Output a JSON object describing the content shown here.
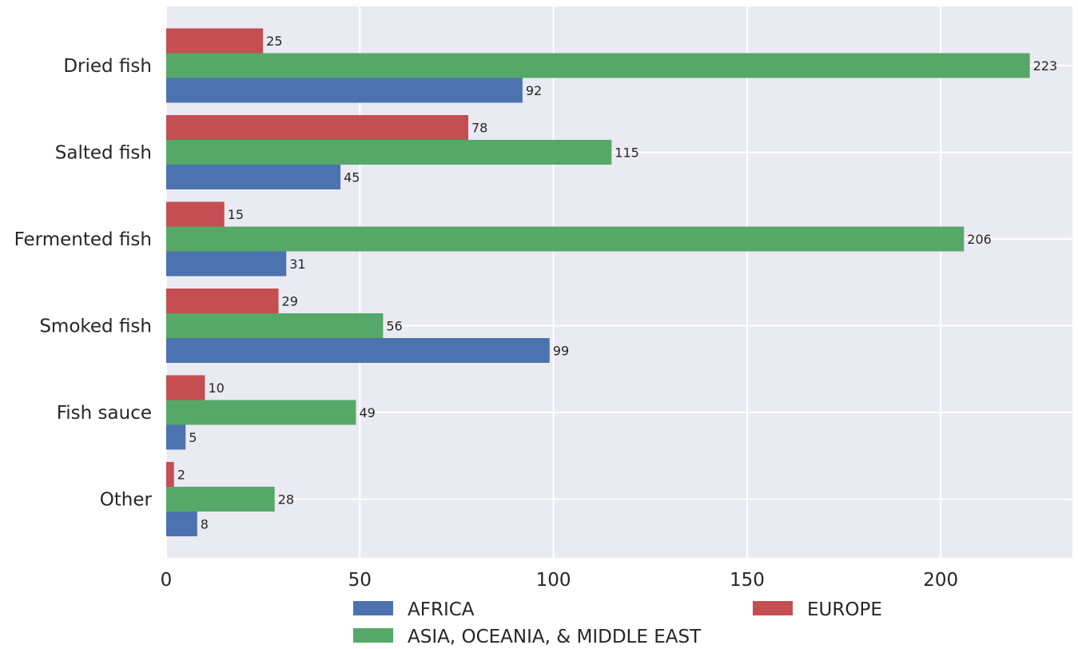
{
  "chart_data": {
    "type": "bar",
    "orientation": "horizontal",
    "categories": [
      "Dried fish",
      "Salted fish",
      "Fermented fish",
      "Smoked fish",
      "Fish sauce",
      "Other"
    ],
    "series": [
      {
        "name": "EUROPE",
        "color": "#c44e52",
        "values": [
          25,
          78,
          15,
          29,
          10,
          2
        ]
      },
      {
        "name": "ASIA, OCEANIA, & MIDDLE EAST",
        "color": "#55a868",
        "values": [
          223,
          115,
          206,
          56,
          49,
          28
        ]
      },
      {
        "name": "AFRICA",
        "color": "#4c72b0",
        "values": [
          92,
          45,
          31,
          99,
          5,
          8
        ]
      }
    ],
    "xticks": [
      0,
      50,
      100,
      150,
      200
    ],
    "xlim": [
      0,
      234
    ],
    "grid": true,
    "background": "#eaeaf2",
    "legend_placement": "bottom",
    "legend_order": [
      "AFRICA",
      "EUROPE",
      "ASIA, OCEANIA, & MIDDLE EAST"
    ],
    "title": "",
    "xlabel": "",
    "ylabel": ""
  }
}
